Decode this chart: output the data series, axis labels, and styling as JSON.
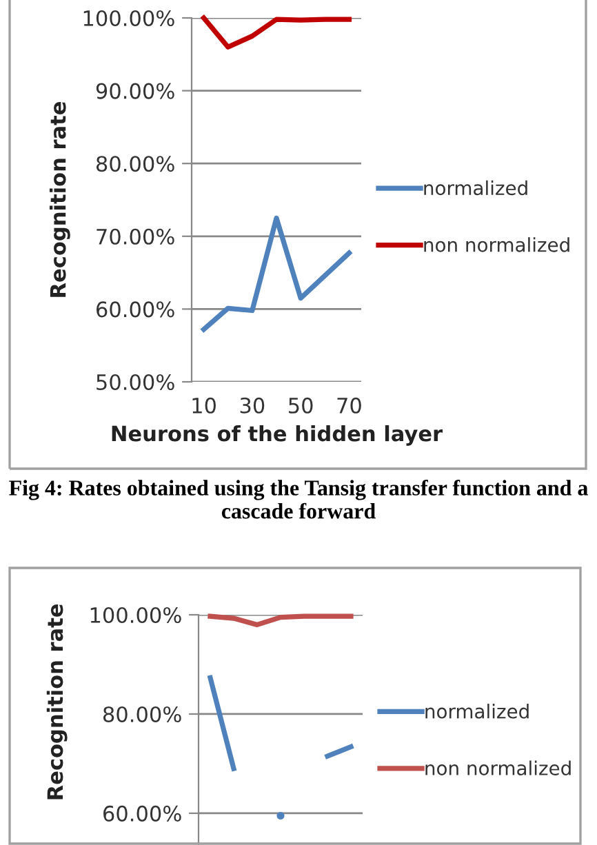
{
  "chart_data": [
    {
      "type": "line",
      "xlabel": "Neurons of the hidden layer",
      "ylabel": "Recognition rate",
      "categories": [
        "10",
        null,
        "30",
        null,
        "50",
        null,
        "70"
      ],
      "series": [
        {
          "name": "normalized",
          "color": "#4f81bd",
          "values": [
            57.2,
            60.1,
            59.8,
            72.5,
            61.5,
            64.6,
            67.7
          ]
        },
        {
          "name": "non normalized",
          "color": "#c00000",
          "values": [
            100,
            96.0,
            97.5,
            99.8,
            99.7,
            99.8,
            99.8
          ]
        }
      ],
      "ylim": [
        50,
        100
      ],
      "yticks": [
        {
          "value": 50,
          "label": "50.00%"
        },
        {
          "value": 60,
          "label": "60.00%"
        },
        {
          "value": 70,
          "label": "70.00%"
        },
        {
          "value": 80,
          "label": "80.00%"
        },
        {
          "value": 90,
          "label": "90.00%"
        },
        {
          "value": 100,
          "label": "100.00%"
        }
      ],
      "grid": "y",
      "legend": "right",
      "marker": "none",
      "line_style": "solid",
      "annotations": [
        "Fig 4: Rates obtained using the Tansig transfer function and a cascade forward"
      ]
    },
    {
      "type": "line",
      "ylabel": "Recognition rate",
      "categories": [
        null,
        null,
        null,
        null,
        null,
        null,
        null
      ],
      "series": [
        {
          "name": "normalized",
          "color": "#4f81bd",
          "values": [
            87.3,
            69,
            null,
            59.5,
            null,
            71.5,
            73.4
          ]
        },
        {
          "name": "non normalized",
          "color": "#c0504d",
          "values": [
            99.7,
            99.3,
            98,
            99.5,
            99.7,
            99.7,
            99.7
          ]
        }
      ],
      "ylim": [
        53.6,
        100
      ],
      "yticks": [
        {
          "value": 60,
          "label": "60.00%"
        },
        {
          "value": 80,
          "label": "80.00%"
        },
        {
          "value": 100,
          "label": "100.00%"
        }
      ],
      "grid": "y",
      "legend": "right",
      "marker": "none",
      "line_style": "solid"
    }
  ]
}
